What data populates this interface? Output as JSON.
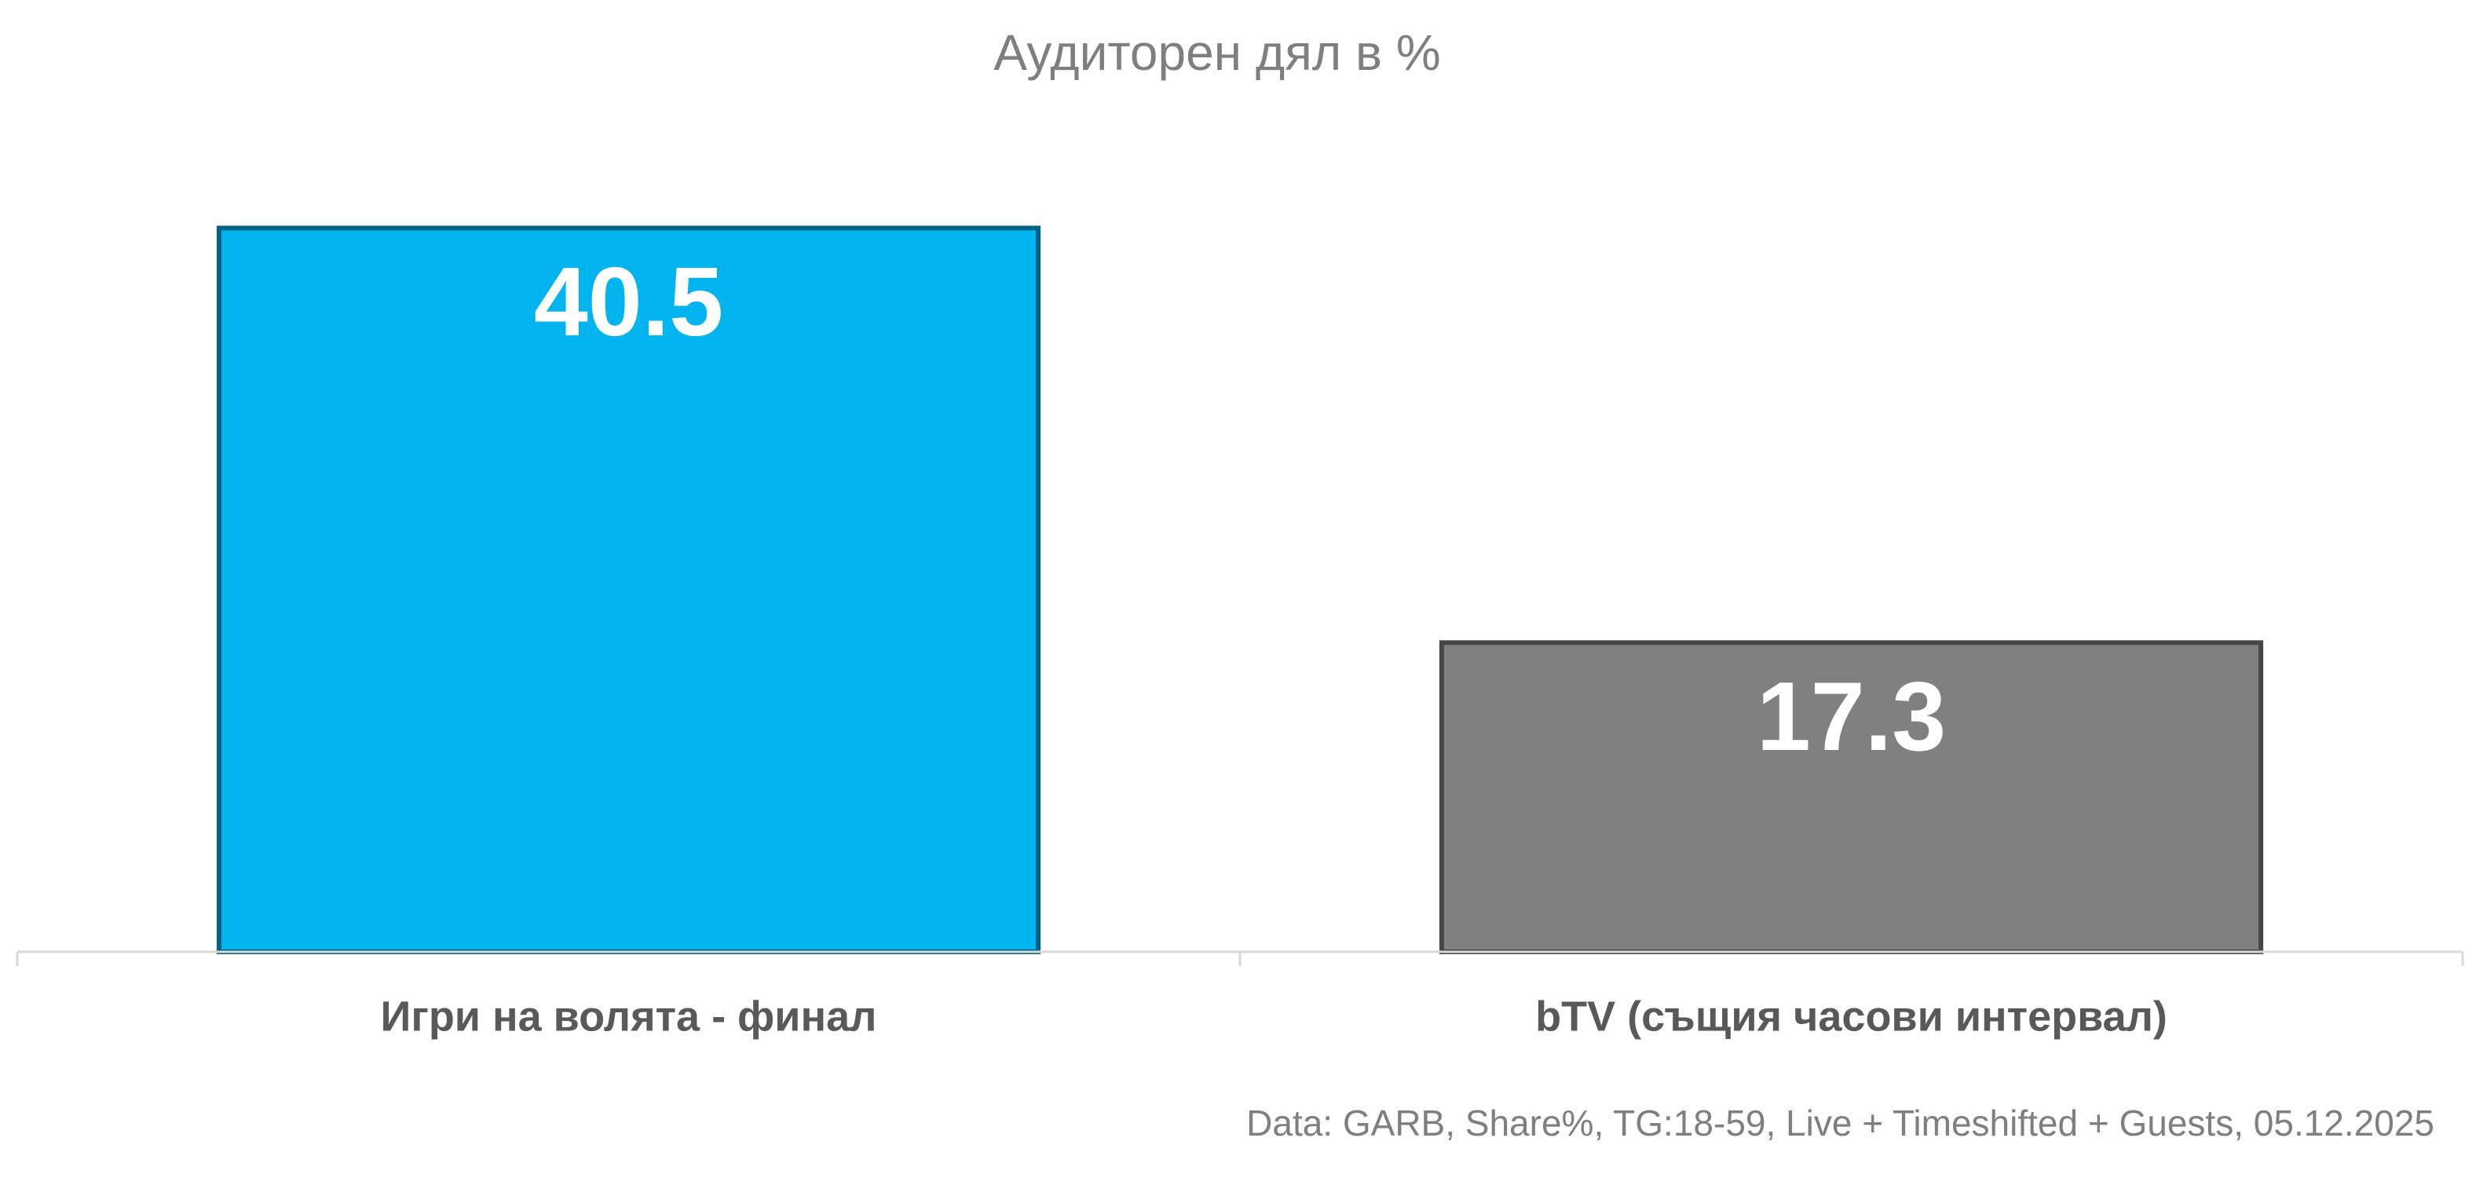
{
  "chart_data": {
    "type": "bar",
    "title": "Аудиторен дял в %",
    "categories": [
      "Игри на волята - финал",
      "bTV (същия часови интервал)"
    ],
    "values": [
      40.5,
      17.3
    ],
    "colors": [
      "#00b4f0",
      "#808080"
    ],
    "ylim": [
      0,
      45
    ],
    "source": "Data: GARB, Share%, TG:18-59, Live + Timeshifted + Guests, 05.12.2025"
  }
}
